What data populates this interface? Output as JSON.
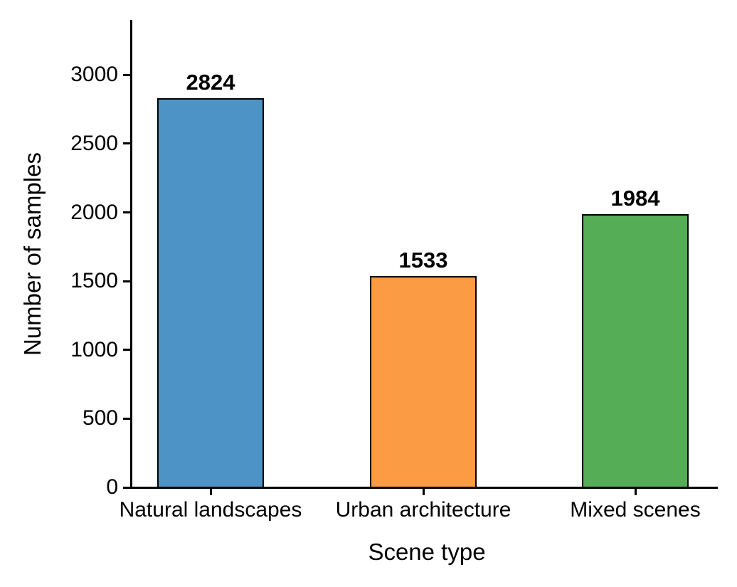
{
  "chart_data": {
    "type": "bar",
    "title": "",
    "xlabel": "Scene type",
    "ylabel": "Number of samples",
    "categories": [
      "Natural landscapes",
      "Urban architecture",
      "Mixed scenes"
    ],
    "values": [
      2824,
      1533,
      1984
    ],
    "value_labels": [
      "2824",
      "1533",
      "1984"
    ],
    "bar_colors": [
      "#4E93C6",
      "#FB9B43",
      "#55AD55"
    ],
    "bar_edge_color": "#000000",
    "yticks": [
      0,
      500,
      1000,
      1500,
      2000,
      2500,
      3000
    ],
    "ytick_labels": [
      "0",
      "500",
      "1000",
      "1500",
      "2000",
      "2500",
      "3000"
    ],
    "ylim": [
      0,
      3400
    ],
    "grid": false,
    "legend": null,
    "background_color": "#ffffff"
  }
}
